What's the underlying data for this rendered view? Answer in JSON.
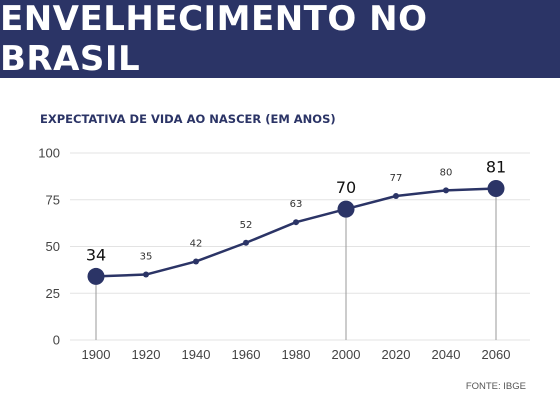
{
  "header": {
    "title": "ENVELHECIMENTO NO BRASIL"
  },
  "source_text": "FONTE: IBGE",
  "colors": {
    "banner": "#2b3466",
    "line": "#2b3466",
    "grid": "#e3e3e3",
    "axis_text": "#444444"
  },
  "chart_data": {
    "type": "line",
    "title": "EXPECTATIVA DE VIDA AO NASCER (EM ANOS)",
    "xlabel": "",
    "ylabel": "",
    "ylim": [
      0,
      100
    ],
    "yticks": [
      0,
      25,
      50,
      75,
      100
    ],
    "categories": [
      "1900",
      "1920",
      "1940",
      "1960",
      "1980",
      "2000",
      "2020",
      "2040",
      "2060"
    ],
    "series": [
      {
        "values": [
          34,
          35,
          42,
          52,
          63,
          70,
          77,
          80,
          81
        ]
      }
    ],
    "highlighted_points": [
      "1900",
      "2000",
      "2060"
    ],
    "grid": "horizontal",
    "legend": "none"
  }
}
